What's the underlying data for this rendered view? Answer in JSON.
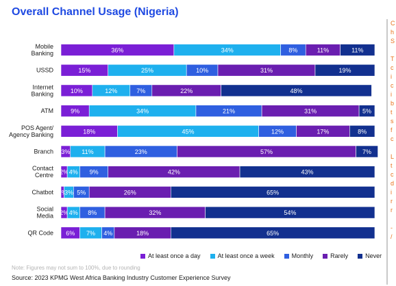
{
  "chart_data": {
    "type": "bar",
    "orientation": "horizontal",
    "stacked": true,
    "title": "Overall Channel Usage (Nigeria)",
    "categories": [
      [
        "Mobile",
        "Banking"
      ],
      [
        "USSD"
      ],
      [
        "Internet",
        "Banking"
      ],
      [
        "ATM"
      ],
      [
        "POS Agent/",
        "Agency Banking"
      ],
      [
        "Branch"
      ],
      [
        "Contact",
        "Centre"
      ],
      [
        "Chatbot"
      ],
      [
        "Social",
        "Media"
      ],
      [
        "QR Code"
      ]
    ],
    "series": [
      {
        "name": "At least once a day",
        "color": "#7a1fd6",
        "values": [
          36,
          15,
          10,
          9,
          18,
          3,
          2,
          1,
          2,
          6
        ]
      },
      {
        "name": "At least once a week",
        "color": "#1eb0ee",
        "values": [
          34,
          25,
          12,
          34,
          45,
          11,
          4,
          3,
          4,
          7
        ]
      },
      {
        "name": "Monthly",
        "color": "#2f5fe0",
        "values": [
          8,
          10,
          7,
          21,
          12,
          23,
          9,
          5,
          8,
          4
        ]
      },
      {
        "name": "Rarely",
        "color": "#6a1eb0",
        "values": [
          11,
          31,
          22,
          31,
          17,
          57,
          42,
          26,
          32,
          18
        ]
      },
      {
        "name": "Never",
        "color": "#12308f",
        "values": [
          11,
          19,
          48,
          5,
          8,
          7,
          43,
          65,
          54,
          65
        ]
      }
    ],
    "value_suffix": "%",
    "xlim": [
      0,
      100
    ],
    "legend_position": "bottom",
    "grid": false
  },
  "footer": {
    "note": "Note: Figures may not sum to 100%, due to rounding",
    "source": "Source: 2023 KPMG West Africa Banking Industry Customer Experience Survey"
  },
  "edge_text": "C\nh\nS\n\nT\nc\ni\nc\ni\nb\nt\ns\nf\nc\n\nL\nt\nc\nd\ni\nr\nr\n\n-\n/"
}
